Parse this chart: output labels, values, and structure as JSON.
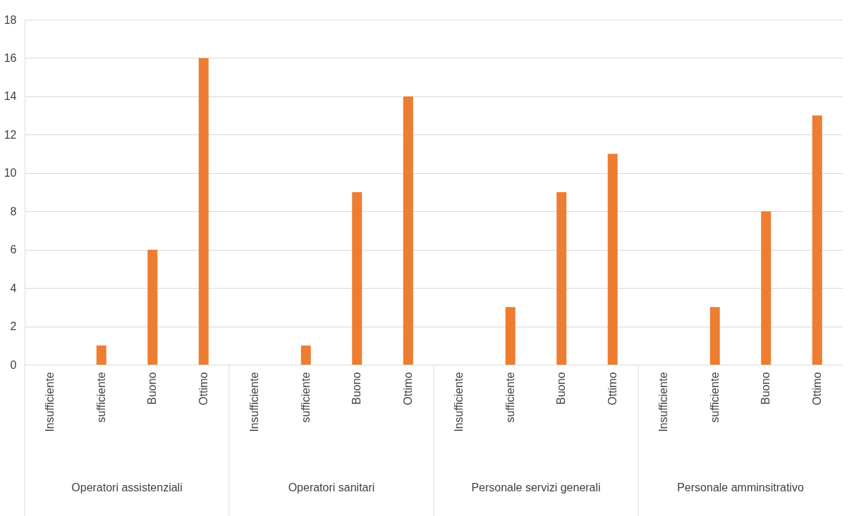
{
  "chart_data": {
    "type": "bar",
    "categories": [
      "Insufficiente",
      "sufficiente",
      "Buono",
      "Ottimo",
      "Insufficiente",
      "sufficiente",
      "Buono",
      "Ottimo",
      "Insufficiente",
      "sufficiente",
      "Buono",
      "Ottimo",
      "Insufficiente",
      "sufficiente",
      "Buono",
      "Ottimo"
    ],
    "values": [
      0,
      1,
      6,
      16,
      0,
      1,
      9,
      14,
      0,
      3,
      9,
      11,
      0,
      3,
      8,
      13
    ],
    "color": "#ed7d31",
    "ylim": [
      0,
      18
    ],
    "yticks": [
      0,
      2,
      4,
      6,
      8,
      10,
      12,
      14,
      16,
      18
    ],
    "grid": "y",
    "annotations": [
      "Operatori assistenziali",
      "Operatori sanitari",
      "Personale servizi generali",
      "Personale amminsitrativo"
    ]
  }
}
